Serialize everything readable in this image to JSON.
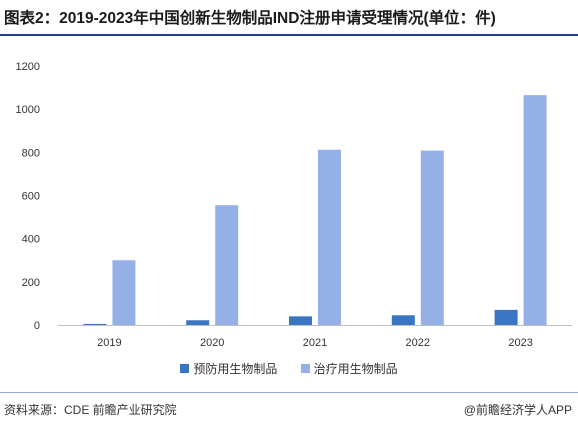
{
  "title": "图表2：2019-2023年中国创新生物制品IND注册申请受理情况(单位：件)",
  "colors": {
    "title_rule": "#1f3f8a",
    "grid": "#d9d9d9"
  },
  "chart_data": {
    "type": "bar",
    "categories": [
      "2019",
      "2020",
      "2021",
      "2022",
      "2023"
    ],
    "series": [
      {
        "name": "预防用生物制品",
        "color": "#3a75c4",
        "values": [
          5,
          22,
          40,
          45,
          70
        ]
      },
      {
        "name": "治疗用生物制品",
        "color": "#94b0e6",
        "values": [
          300,
          555,
          812,
          808,
          1065
        ]
      }
    ],
    "y_ticks": [
      "0",
      "200",
      "400",
      "600",
      "800",
      "1000",
      "1200"
    ],
    "ylim": [
      0,
      1200
    ],
    "grid": false,
    "legend_position": "bottom-center"
  },
  "watermark": "前瞻产业研究院",
  "footer": {
    "source": "资料来源：CDE 前瞻产业研究院",
    "brand": "@前瞻经济学人APP"
  }
}
